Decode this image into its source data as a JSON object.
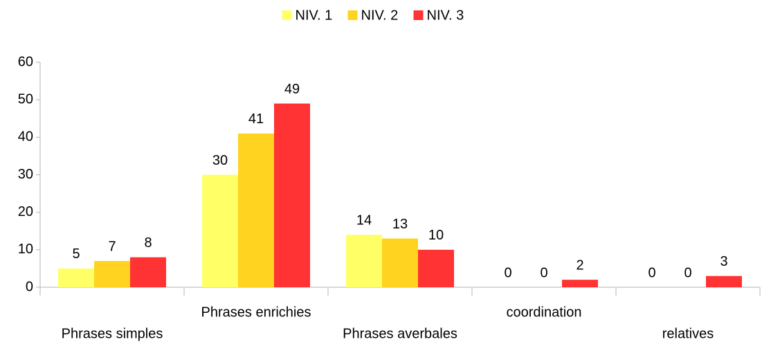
{
  "chart_data": {
    "type": "bar",
    "categories": [
      "Phrases simples",
      "Phrases enrichies",
      "Phrases averbales",
      "coordination",
      "relatives"
    ],
    "series": [
      {
        "name": "NIV. 1",
        "color": "#ffff66",
        "values": [
          5,
          30,
          14,
          0,
          0
        ]
      },
      {
        "name": "NIV. 2",
        "color": "#ffd320",
        "values": [
          7,
          41,
          13,
          0,
          0
        ]
      },
      {
        "name": "NIV. 3",
        "color": "#ff3333",
        "values": [
          8,
          49,
          10,
          2,
          3
        ]
      }
    ],
    "ylim": [
      0,
      60
    ],
    "yticks": [
      0,
      10,
      20,
      30,
      40,
      50,
      60
    ],
    "grid": false,
    "legend": "top"
  }
}
